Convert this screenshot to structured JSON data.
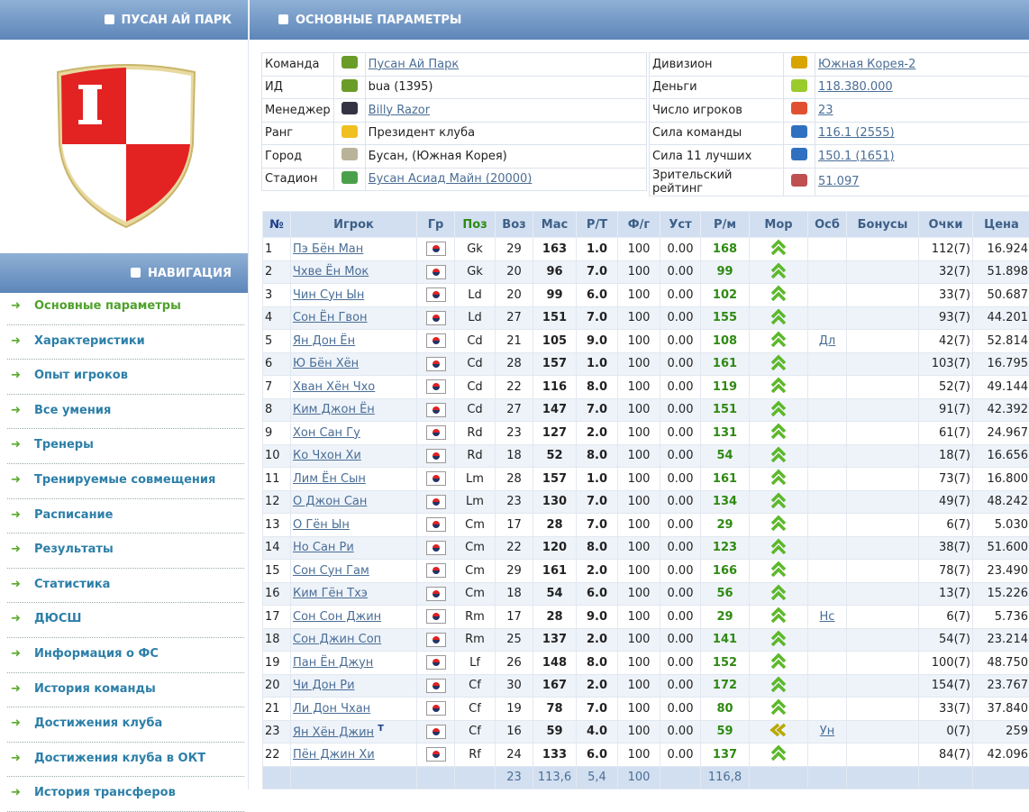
{
  "left": {
    "club_title": "ПУСАН АЙ ПАРК",
    "nav_title": "НАВИГАЦИЯ",
    "nav": [
      "Основные параметры",
      "Характеристики",
      "Опыт игроков",
      "Все умения",
      "Тренеры",
      "Тренируемые совмещения",
      "Расписание",
      "Результаты",
      "Статистика",
      "ДЮСШ",
      "Информация о ФС",
      "История команды",
      "Достижения клуба",
      "Достижения клуба в ОКТ",
      "История трансферов"
    ]
  },
  "main": {
    "title": "ОСНОВНЫЕ ПАРАМЕТРЫ",
    "info_left": [
      [
        "Команда",
        "Пусан Ай Парк"
      ],
      [
        "ИД",
        "bua (1395)"
      ],
      [
        "Менеджер",
        "Billy Razor"
      ],
      [
        "Ранг",
        "Президент клуба"
      ],
      [
        "Город",
        "Бусан, (Южная Корея)"
      ],
      [
        "Стадион",
        "Бусан Асиад Майн (20000)"
      ]
    ],
    "info_right": [
      [
        "Дивизион",
        "Южная Корея-2"
      ],
      [
        "Деньги",
        "118.380.000"
      ],
      [
        "Число игроков",
        "23"
      ],
      [
        "Сила команды",
        "116.1 (2555)"
      ],
      [
        "Сила 11 лучших",
        "150.1 (1651)"
      ],
      [
        "Зрительский рейтинг",
        "51.097"
      ]
    ],
    "table": {
      "headers": [
        "№",
        "Игрок",
        "Гр",
        "Поз",
        "Воз",
        "Мас",
        "Р/Т",
        "Ф/г",
        "Уст",
        "Р/м",
        "Мор",
        "Осб",
        "Бонусы",
        "Очки",
        "Цена"
      ],
      "rows": [
        {
          "cells": [
            "1",
            "Пэ Бён Ман",
            "Gk",
            "29",
            "163",
            "1.0",
            "100",
            "0.00",
            "168",
            null,
            "112(7)",
            "16.924"
          ]
        },
        {
          "cells": [
            "2",
            "Чхве Ён Мок",
            "Gk",
            "20",
            "96",
            "7.0",
            "100",
            "0.00",
            "99",
            null,
            "32(7)",
            "51.898"
          ]
        },
        {
          "cells": [
            "3",
            "Чин Сун Ын",
            "Ld",
            "20",
            "99",
            "6.0",
            "100",
            "0.00",
            "102",
            null,
            "33(7)",
            "50.687"
          ]
        },
        {
          "cells": [
            "4",
            "Сон Ён Гвон",
            "Ld",
            "27",
            "151",
            "7.0",
            "100",
            "0.00",
            "155",
            null,
            "93(7)",
            "44.201"
          ]
        },
        {
          "cells": [
            "5",
            "Ян Дон Ён",
            "Cd",
            "21",
            "105",
            "9.0",
            "100",
            "0.00",
            "108",
            "Дл",
            "42(7)",
            "52.814"
          ]
        },
        {
          "cells": [
            "6",
            "Ю Бён Хён",
            "Cd",
            "28",
            "157",
            "1.0",
            "100",
            "0.00",
            "161",
            null,
            "103(7)",
            "16.795"
          ]
        },
        {
          "cells": [
            "7",
            "Хван Хён Чхо",
            "Cd",
            "22",
            "116",
            "8.0",
            "100",
            "0.00",
            "119",
            null,
            "52(7)",
            "49.144"
          ]
        },
        {
          "cells": [
            "8",
            "Ким Джон Ён",
            "Cd",
            "27",
            "147",
            "7.0",
            "100",
            "0.00",
            "151",
            null,
            "91(7)",
            "42.392"
          ]
        },
        {
          "cells": [
            "9",
            "Хон Сан Гу",
            "Rd",
            "23",
            "127",
            "2.0",
            "100",
            "0.00",
            "131",
            null,
            "61(7)",
            "24.967"
          ]
        },
        {
          "cells": [
            "10",
            "Ко Чхон Хи",
            "Rd",
            "18",
            "52",
            "8.0",
            "100",
            "0.00",
            "54",
            null,
            "18(7)",
            "16.656"
          ]
        },
        {
          "cells": [
            "11",
            "Лим Ён Сын",
            "Lm",
            "28",
            "157",
            "1.0",
            "100",
            "0.00",
            "161",
            null,
            "73(7)",
            "16.800"
          ]
        },
        {
          "cells": [
            "12",
            "О Джон Сан",
            "Lm",
            "23",
            "130",
            "7.0",
            "100",
            "0.00",
            "134",
            null,
            "49(7)",
            "48.242"
          ]
        },
        {
          "cells": [
            "13",
            "О Гён Ын",
            "Cm",
            "17",
            "28",
            "7.0",
            "100",
            "0.00",
            "29",
            null,
            "6(7)",
            "5.030"
          ]
        },
        {
          "cells": [
            "14",
            "Но Сан Ри",
            "Cm",
            "22",
            "120",
            "8.0",
            "100",
            "0.00",
            "123",
            null,
            "38(7)",
            "51.600"
          ]
        },
        {
          "cells": [
            "15",
            "Сон Сун Гам",
            "Cm",
            "29",
            "161",
            "2.0",
            "100",
            "0.00",
            "166",
            null,
            "78(7)",
            "23.490"
          ]
        },
        {
          "cells": [
            "16",
            "Ким Гён Тхэ",
            "Cm",
            "18",
            "54",
            "6.0",
            "100",
            "0.00",
            "56",
            null,
            "13(7)",
            "15.226"
          ]
        },
        {
          "cells": [
            "17",
            "Сон Сон Джин",
            "Rm",
            "17",
            "28",
            "9.0",
            "100",
            "0.00",
            "29",
            "Нс",
            "6(7)",
            "5.736"
          ]
        },
        {
          "cells": [
            "18",
            "Сон Джин Соп",
            "Rm",
            "25",
            "137",
            "2.0",
            "100",
            "0.00",
            "141",
            null,
            "54(7)",
            "23.214"
          ]
        },
        {
          "cells": [
            "19",
            "Пан Ён Джун",
            "Lf",
            "26",
            "148",
            "8.0",
            "100",
            "0.00",
            "152",
            null,
            "100(7)",
            "48.750"
          ]
        },
        {
          "cells": [
            "20",
            "Чи Дон Ри",
            "Cf",
            "30",
            "167",
            "2.0",
            "100",
            "0.00",
            "172",
            null,
            "154(7)",
            "23.767"
          ]
        },
        {
          "cells": [
            "21",
            "Ли Дон Чхан",
            "Cf",
            "19",
            "78",
            "7.0",
            "100",
            "0.00",
            "80",
            null,
            "33(7)",
            "37.840"
          ]
        },
        {
          "cells": [
            "23",
            "Ян Хён Джин",
            "Cf",
            "16",
            "59",
            "4.0",
            "100",
            "0.00",
            "59",
            "Ун",
            "0(7)",
            "259"
          ],
          "tag": "T"
        },
        {
          "cells": [
            "22",
            "Пён Джин Хи",
            "Rf",
            "24",
            "133",
            "6.0",
            "100",
            "0.00",
            "137",
            null,
            "84(7)",
            "42.096"
          ]
        }
      ],
      "footer": [
        null,
        null,
        null,
        "23",
        "113,6",
        "5,4",
        "100",
        null,
        "116,8",
        null,
        null,
        null
      ]
    }
  }
}
